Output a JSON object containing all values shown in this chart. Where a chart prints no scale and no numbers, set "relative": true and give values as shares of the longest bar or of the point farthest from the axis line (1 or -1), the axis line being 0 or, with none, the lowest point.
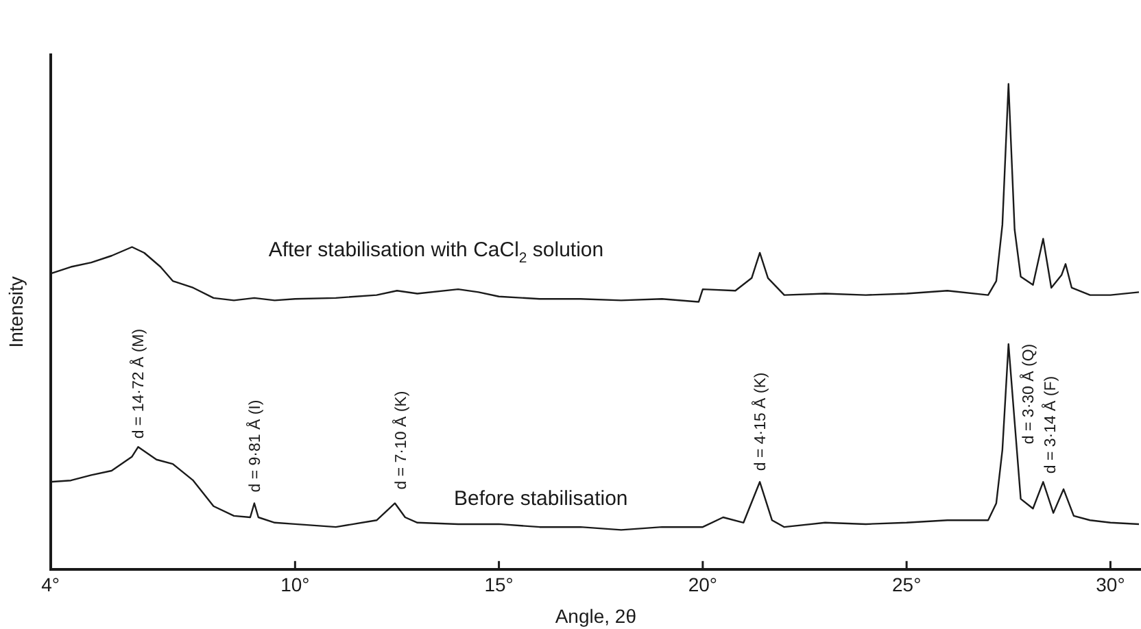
{
  "chart_data": {
    "type": "line",
    "relative": true,
    "xlabel": "Angle, 2θ",
    "ylabel": "Intensity",
    "xlim": [
      4,
      30.75
    ],
    "xticks": [
      {
        "value": 4,
        "label": "4°"
      },
      {
        "value": 10,
        "label": "10°"
      },
      {
        "value": 15,
        "label": "15°"
      },
      {
        "value": 20,
        "label": "20°"
      },
      {
        "value": 25,
        "label": "25°"
      },
      {
        "value": 30,
        "label": "30°"
      }
    ],
    "grid": false,
    "legend": false,
    "marker": "none",
    "line_style": "solid",
    "series": [
      {
        "name": "After stabilisation with CaCl$_{2}$ solution",
        "color": "#1a1a1a",
        "x": [
          4.0,
          4.5,
          5.0,
          5.5,
          6.0,
          6.3,
          6.7,
          7.0,
          7.5,
          8.0,
          8.5,
          9.0,
          9.5,
          10,
          11,
          12,
          12.5,
          13,
          14,
          14.5,
          15,
          16,
          17,
          18,
          19,
          19.9,
          20.0,
          20.8,
          21.2,
          21.4,
          21.6,
          22,
          23,
          24,
          25,
          26,
          27,
          27.2,
          27.35,
          27.5,
          27.65,
          27.8,
          28.1,
          28.35,
          28.55,
          28.8,
          28.9,
          29.05,
          29.5,
          30,
          30.7
        ],
        "values": [
          0.609,
          0.623,
          0.632,
          0.646,
          0.664,
          0.652,
          0.623,
          0.594,
          0.58,
          0.559,
          0.554,
          0.559,
          0.554,
          0.557,
          0.559,
          0.565,
          0.574,
          0.568,
          0.577,
          0.571,
          0.562,
          0.557,
          0.557,
          0.554,
          0.557,
          0.551,
          0.577,
          0.574,
          0.6,
          0.652,
          0.6,
          0.565,
          0.568,
          0.565,
          0.568,
          0.574,
          0.565,
          0.594,
          0.71,
          1.0,
          0.7,
          0.603,
          0.586,
          0.681,
          0.58,
          0.606,
          0.629,
          0.58,
          0.565,
          0.565,
          0.571
        ]
      },
      {
        "name": "Before stabilisation",
        "color": "#1a1a1a",
        "x": [
          4.0,
          4.5,
          5.0,
          5.5,
          6.0,
          6.15,
          6.6,
          7.0,
          7.5,
          8.0,
          8.5,
          8.9,
          9.0,
          9.1,
          9.5,
          10,
          11,
          12,
          12.45,
          12.7,
          13,
          14,
          15,
          16,
          17,
          18,
          19,
          20,
          20.5,
          21.0,
          21.4,
          21.7,
          22,
          23,
          24,
          25,
          26,
          27,
          27.2,
          27.35,
          27.5,
          27.65,
          27.8,
          28.1,
          28.35,
          28.6,
          28.85,
          29.1,
          29.5,
          30,
          30.7
        ],
        "values": [
          0.18,
          0.183,
          0.194,
          0.203,
          0.232,
          0.252,
          0.226,
          0.217,
          0.183,
          0.13,
          0.11,
          0.107,
          0.136,
          0.107,
          0.096,
          0.093,
          0.087,
          0.101,
          0.136,
          0.107,
          0.096,
          0.093,
          0.093,
          0.087,
          0.087,
          0.081,
          0.087,
          0.087,
          0.107,
          0.096,
          0.18,
          0.101,
          0.087,
          0.096,
          0.093,
          0.096,
          0.101,
          0.101,
          0.136,
          0.246,
          0.464,
          0.304,
          0.145,
          0.125,
          0.18,
          0.116,
          0.165,
          0.11,
          0.101,
          0.096,
          0.093
        ]
      }
    ],
    "annotations": [
      {
        "text": "d = 14·72 Å (M)",
        "x": 6.15,
        "y": 0.252
      },
      {
        "text": "d = 9·81 Å (I)",
        "x": 9.0,
        "y": 0.136
      },
      {
        "text": "d = 7·10 Å (K)",
        "x": 12.45,
        "y": 0.136
      },
      {
        "text": "d = 4·15 Å (K)",
        "x": 21.4,
        "y": 0.18
      },
      {
        "text": "d = 3·30 Å (Q)",
        "x": 27.5,
        "y": 0.464
      },
      {
        "text": "d = 3·14 Å (F)",
        "x": 28.35,
        "y": 0.18
      }
    ]
  }
}
